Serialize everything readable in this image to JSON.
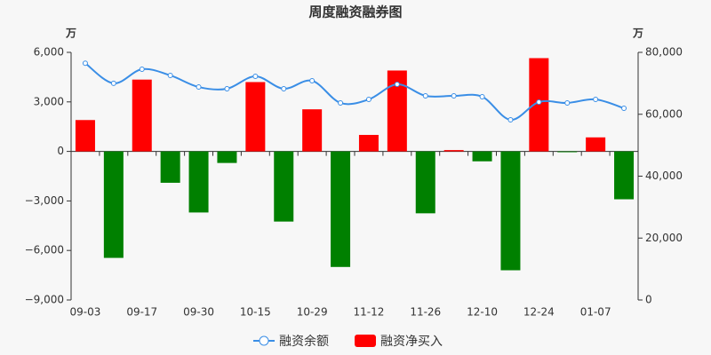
{
  "chart_data": {
    "type": "bar",
    "title": "周度融资融券图",
    "y_unit": "万",
    "y2_unit": "万",
    "categories": [
      "09-03",
      null,
      "09-17",
      null,
      "09-30",
      null,
      "10-15",
      null,
      "10-29",
      null,
      "11-12",
      null,
      "11-26",
      null,
      "12-10",
      null,
      "12-24",
      null,
      "01-07",
      null
    ],
    "series": [
      {
        "name": "融资余额",
        "type": "line",
        "axis": "y2",
        "color": "#3a8ee6",
        "values": [
          76500,
          70000,
          74550,
          72550,
          68800,
          68250,
          72260,
          68250,
          70820,
          63660,
          64800,
          69680,
          65950,
          65950,
          65660,
          58200,
          63940,
          63660,
          64800,
          61940
        ]
      },
      {
        "name": "融资净买入",
        "type": "bar",
        "color": "#ff0000",
        "negative_color": "#008000",
        "values": [
          1900,
          -6450,
          4350,
          -1900,
          -3700,
          -700,
          4200,
          -4250,
          2550,
          -7000,
          1000,
          4900,
          -3750,
          80,
          -600,
          -7200,
          5650,
          -50,
          850,
          -2900
        ]
      }
    ],
    "ylim": [
      -9000,
      6000
    ],
    "yticks": [
      {
        "value": -9000,
        "label": "−9,000"
      },
      {
        "value": -6000,
        "label": "−6,000"
      },
      {
        "value": -3000,
        "label": "−3,000"
      },
      0,
      {
        "value": 3000,
        "label": "3,000"
      },
      {
        "value": 6000,
        "label": "6,000"
      }
    ],
    "y2lim": [
      0,
      80000
    ],
    "y2ticks": [
      0,
      {
        "value": 20000,
        "label": "20,000"
      },
      {
        "value": 40000,
        "label": "40,000"
      },
      {
        "value": 60000,
        "label": "60,000"
      },
      {
        "value": 80000,
        "label": "80,000"
      }
    ]
  }
}
